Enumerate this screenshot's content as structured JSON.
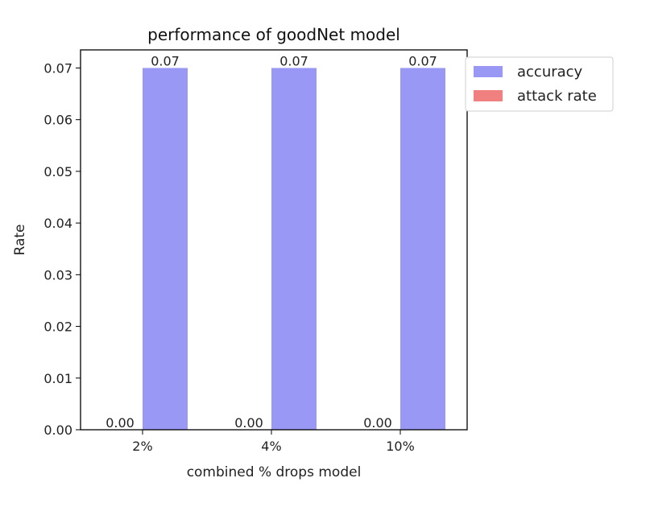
{
  "chart_data": {
    "type": "bar",
    "title": "performance of goodNet model",
    "xlabel": "combined % drops model",
    "ylabel": "Rate",
    "categories": [
      "2%",
      "4%",
      "10%"
    ],
    "ylim": [
      0,
      0.0735
    ],
    "yticks": [
      "0.00",
      "0.01",
      "0.02",
      "0.03",
      "0.04",
      "0.05",
      "0.06",
      "0.07"
    ],
    "series": [
      {
        "name": "attack rate",
        "values": [
          0.0,
          0.0,
          0.0
        ],
        "labels": [
          "0.00",
          "0.00",
          "0.00"
        ],
        "color": "#f08080"
      },
      {
        "name": "accuracy",
        "values": [
          0.07,
          0.07,
          0.07
        ],
        "labels": [
          "0.07",
          "0.07",
          "0.07"
        ],
        "color": "#9999f5"
      }
    ],
    "legend": {
      "placement": "upper-right-outside",
      "entries": [
        {
          "label": "accuracy",
          "color": "#9999f5"
        },
        {
          "label": "attack rate",
          "color": "#f08080"
        }
      ]
    },
    "grid": false
  }
}
